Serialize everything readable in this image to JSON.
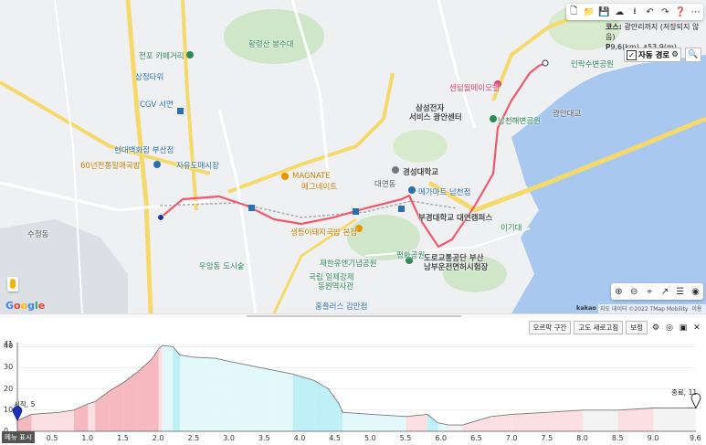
{
  "toolbar": {
    "icons": [
      "file-icon",
      "folder-icon",
      "save-icon",
      "cloud-icon",
      "download-icon",
      "undo-icon",
      "redo-icon",
      "help-icon",
      "more-icon"
    ]
  },
  "course": {
    "title_label": "코스:",
    "title": "광안리까지 (저장되지 않음)",
    "distance": "9.6(km)",
    "ascent": "53.9(m)"
  },
  "route_option": {
    "label": "자동 경로",
    "checked": true
  },
  "map_labels": {
    "hwangnyeongsan": "황령산 봉수대",
    "jeonpo": "전포 카페거리",
    "samsung_tower": "삼정타워",
    "cgv": "CGV 서면",
    "hyundai": "현대백화점 부산점",
    "gukbap": "60년전통할매국밥",
    "jayu": "자유도매시장",
    "magnate1": "MAGNATE",
    "magnate2": "메그네이트",
    "kyungsung": "경성대학교",
    "megamart": "메가마트 남천점",
    "bukyong": "부경대학교 대연캠퍼스",
    "saengdeung": "생등어돼지국밥 본점",
    "pyeonghwa": "평화공원",
    "jaehan": "재한유엔기념공원",
    "national1": "국립 일제강제",
    "national2": "동원역사관",
    "moonhyeon": "우암동 도시숲",
    "homeplus": "홈플러스 감만점",
    "road_park1": "도로교통공단 부산",
    "road_park2": "남부운전면허시험장",
    "centum": "센텀월메이모텔",
    "samsung_service1": "삼성전자",
    "samsung_service2": "서비스 광안센터",
    "namcheon_park": "남천해변공원",
    "gwangan_bridge": "광안대교",
    "minrak": "민락수변공원",
    "igidae": "이기대",
    "daeyeon": "대연동",
    "sujeong": "수정동"
  },
  "map_tools": {
    "icons": [
      "zoom-in-icon",
      "zoom-out-icon",
      "locate-icon",
      "trend-icon",
      "list-icon",
      "pin-icon"
    ]
  },
  "attribution": {
    "logo": "kakao",
    "data": "지도 데이터 ©2022 TMap Mobility",
    "terms": "이용약관",
    "google": "Google"
  },
  "elevation": {
    "buttons": [
      "오르막 구간",
      "고도 새로고침",
      "보정"
    ],
    "tool_icons": [
      "settings-icon",
      "location-icon",
      "image-icon",
      "close-icon"
    ],
    "memo": "메뉴 표시",
    "start_label": "시작, 5",
    "end_label": "종료, 11"
  },
  "chart_data": {
    "type": "area",
    "title": "",
    "xlabel": "",
    "ylabel": "",
    "xlim": [
      0,
      9.6
    ],
    "ylim": [
      0,
      41
    ],
    "yticks": [
      0,
      10,
      20,
      30,
      40,
      41
    ],
    "xticks": [
      0.5,
      1.0,
      1.5,
      2.0,
      2.5,
      3.0,
      3.5,
      4.0,
      4.5,
      5.0,
      5.5,
      6.0,
      6.5,
      7.0,
      7.5,
      8.0,
      8.5,
      9.0,
      9.6
    ],
    "x": [
      0,
      0.2,
      0.4,
      0.6,
      0.8,
      1.0,
      1.1,
      1.3,
      1.5,
      1.7,
      1.9,
      2.0,
      2.05,
      2.2,
      2.3,
      2.5,
      2.8,
      3.0,
      3.3,
      3.6,
      3.9,
      4.2,
      4.4,
      4.55,
      4.6,
      5.0,
      5.5,
      5.8,
      5.95,
      6.1,
      6.3,
      6.5,
      6.7,
      7.0,
      7.5,
      8.0,
      8.5,
      9.0,
      9.3,
      9.6
    ],
    "y": [
      5,
      8,
      8.5,
      9,
      10,
      13,
      14,
      19,
      23,
      28,
      34,
      39,
      40.5,
      40,
      36,
      35,
      34.5,
      33,
      31,
      29,
      27,
      24,
      20,
      13,
      9,
      8,
      7,
      8,
      4,
      3,
      3,
      5,
      7,
      8,
      9,
      10,
      10,
      11,
      11,
      11
    ],
    "start": {
      "x": 0,
      "y": 5
    },
    "end": {
      "x": 9.6,
      "y": 11
    }
  }
}
